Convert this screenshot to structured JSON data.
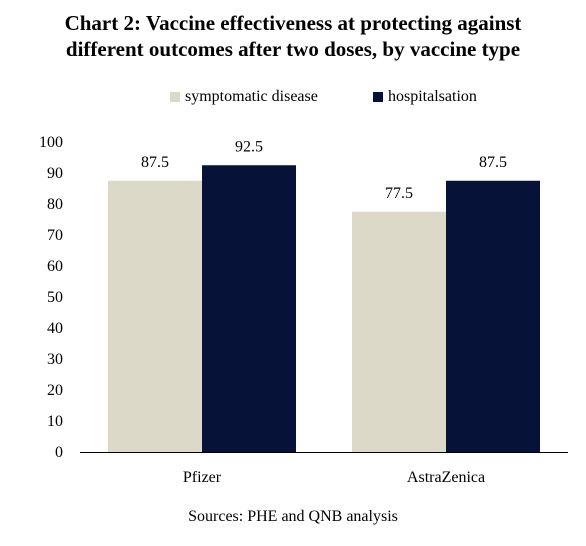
{
  "title_line1": "Chart 2: Vaccine effectiveness at protecting against",
  "title_line2": "different outcomes after two doses, by vaccine type",
  "source": "Sources: PHE and QNB analysis",
  "chart_data": {
    "type": "bar",
    "title": "Chart 2: Vaccine effectiveness at protecting against different outcomes after two doses, by vaccine type",
    "categories": [
      "Pfizer",
      "AstraZenica"
    ],
    "series": [
      {
        "name": "symptomatic disease",
        "values": [
          87.5,
          77.5
        ],
        "color": "#ddd9c8"
      },
      {
        "name": "hospitalsation",
        "values": [
          92.5,
          87.5
        ],
        "color": "#061238"
      }
    ],
    "ylim": [
      0,
      100
    ],
    "yticks": [
      0,
      10,
      20,
      30,
      40,
      50,
      60,
      70,
      80,
      90,
      100
    ],
    "grid": false,
    "legend_position": "top"
  }
}
